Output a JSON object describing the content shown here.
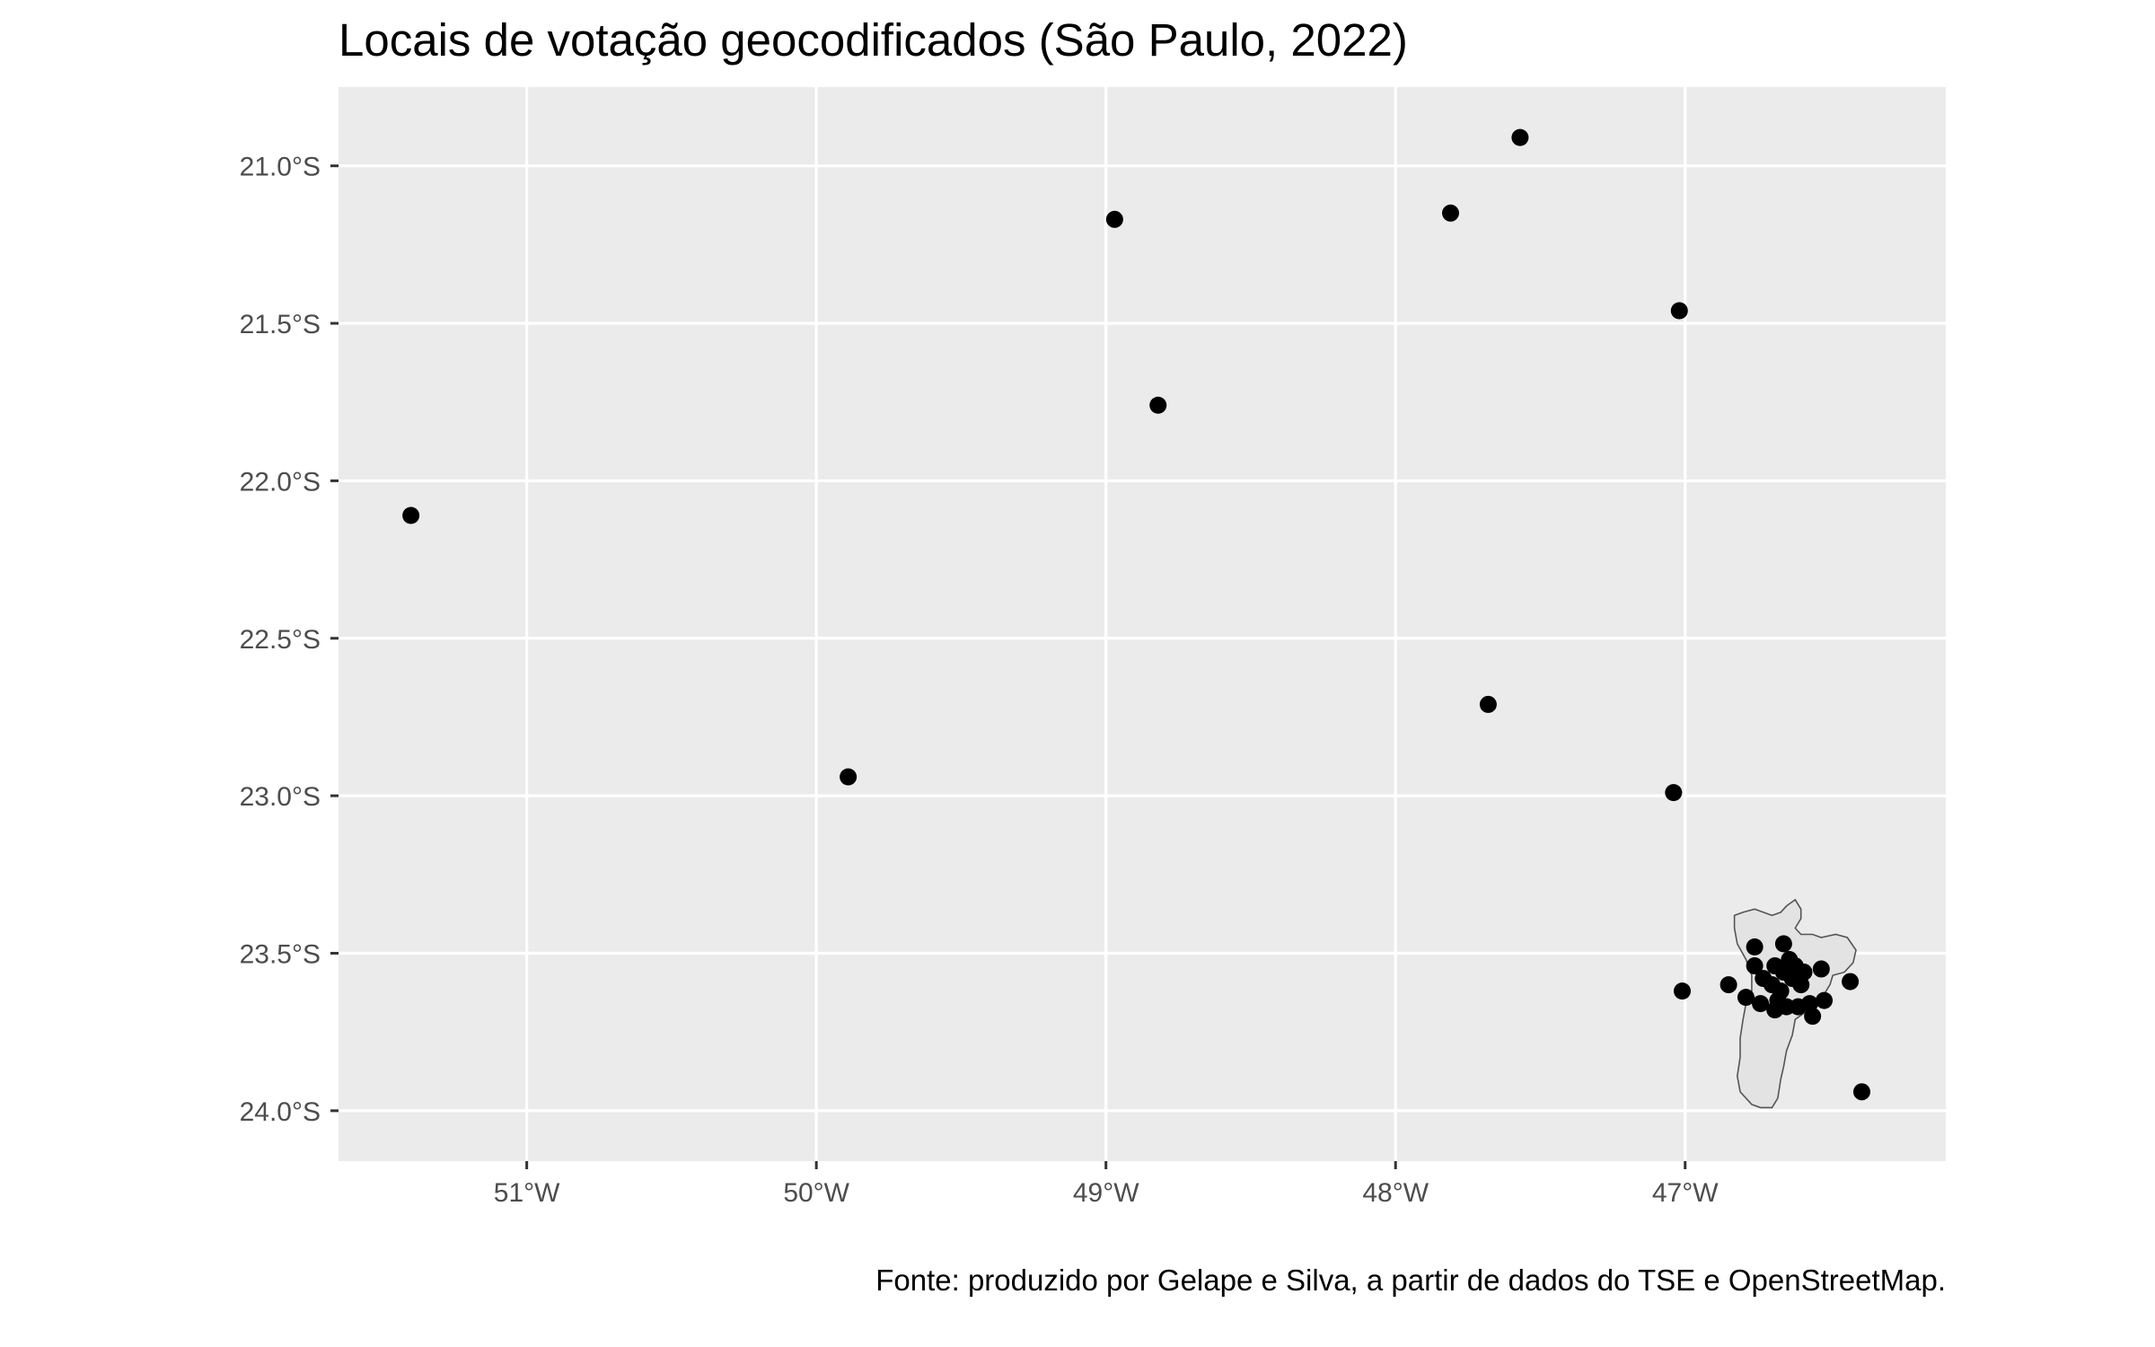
{
  "chart_data": {
    "type": "scatter",
    "title": "Locais de votação geocodificados (São Paulo, 2022)",
    "caption": "Fonte: produzido por Gelape e Silva, a partir de dados do TSE e OpenStreetMap.",
    "xlabel": "",
    "ylabel": "",
    "xlim": [
      -51.65,
      -46.1
    ],
    "ylim": [
      -24.16,
      -20.75
    ],
    "grid": true,
    "legend": "none",
    "x_ticks": [
      {
        "value": -51,
        "label": "51°W"
      },
      {
        "value": -50,
        "label": "50°W"
      },
      {
        "value": -49,
        "label": "49°W"
      },
      {
        "value": -48,
        "label": "48°W"
      },
      {
        "value": -47,
        "label": "47°W"
      }
    ],
    "y_ticks": [
      {
        "value": -21.0,
        "label": "21.0°S"
      },
      {
        "value": -21.5,
        "label": "21.5°S"
      },
      {
        "value": -22.0,
        "label": "22.0°S"
      },
      {
        "value": -22.5,
        "label": "22.5°S"
      },
      {
        "value": -23.0,
        "label": "23.0°S"
      },
      {
        "value": -23.5,
        "label": "23.5°S"
      },
      {
        "value": -24.0,
        "label": "24.0°S"
      }
    ],
    "colors": {
      "panel": "#ebebeb",
      "grid": "#ffffff",
      "point": "#000000",
      "boundary_fill": "#e3e3e3",
      "boundary_stroke": "#555555"
    },
    "municipality_boundary": [
      [
        -46.83,
        -23.38
      ],
      [
        -46.8,
        -23.37
      ],
      [
        -46.76,
        -23.36
      ],
      [
        -46.73,
        -23.37
      ],
      [
        -46.7,
        -23.38
      ],
      [
        -46.67,
        -23.37
      ],
      [
        -46.65,
        -23.35
      ],
      [
        -46.62,
        -23.33
      ],
      [
        -46.6,
        -23.36
      ],
      [
        -46.6,
        -23.39
      ],
      [
        -46.62,
        -23.42
      ],
      [
        -46.6,
        -23.44
      ],
      [
        -46.56,
        -23.44
      ],
      [
        -46.53,
        -23.45
      ],
      [
        -46.48,
        -23.44
      ],
      [
        -46.44,
        -23.45
      ],
      [
        -46.41,
        -23.49
      ],
      [
        -46.42,
        -23.53
      ],
      [
        -46.45,
        -23.56
      ],
      [
        -46.49,
        -23.57
      ],
      [
        -46.5,
        -23.6
      ],
      [
        -46.52,
        -23.63
      ],
      [
        -46.55,
        -23.66
      ],
      [
        -46.59,
        -23.69
      ],
      [
        -46.62,
        -23.71
      ],
      [
        -46.63,
        -23.76
      ],
      [
        -46.65,
        -23.81
      ],
      [
        -46.66,
        -23.86
      ],
      [
        -46.67,
        -23.9
      ],
      [
        -46.68,
        -23.96
      ],
      [
        -46.7,
        -23.99
      ],
      [
        -46.74,
        -23.99
      ],
      [
        -46.77,
        -23.98
      ],
      [
        -46.79,
        -23.96
      ],
      [
        -46.81,
        -23.94
      ],
      [
        -46.82,
        -23.89
      ],
      [
        -46.81,
        -23.83
      ],
      [
        -46.81,
        -23.77
      ],
      [
        -46.8,
        -23.71
      ],
      [
        -46.79,
        -23.66
      ],
      [
        -46.77,
        -23.62
      ],
      [
        -46.77,
        -23.57
      ],
      [
        -46.79,
        -23.52
      ],
      [
        -46.82,
        -23.47
      ],
      [
        -46.83,
        -23.42
      ]
    ],
    "points": [
      {
        "x": -51.4,
        "y": -22.11
      },
      {
        "x": -49.89,
        "y": -22.94
      },
      {
        "x": -48.97,
        "y": -21.17
      },
      {
        "x": -48.82,
        "y": -21.76
      },
      {
        "x": -47.81,
        "y": -21.15
      },
      {
        "x": -47.57,
        "y": -20.91
      },
      {
        "x": -47.68,
        "y": -22.71
      },
      {
        "x": -47.02,
        "y": -21.46
      },
      {
        "x": -47.04,
        "y": -22.99
      },
      {
        "x": -47.01,
        "y": -23.62
      },
      {
        "x": -46.85,
        "y": -23.6
      },
      {
        "x": -46.79,
        "y": -23.64
      },
      {
        "x": -46.76,
        "y": -23.48
      },
      {
        "x": -46.76,
        "y": -23.54
      },
      {
        "x": -46.74,
        "y": -23.66
      },
      {
        "x": -46.73,
        "y": -23.58
      },
      {
        "x": -46.7,
        "y": -23.6
      },
      {
        "x": -46.69,
        "y": -23.54
      },
      {
        "x": -46.69,
        "y": -23.68
      },
      {
        "x": -46.68,
        "y": -23.65
      },
      {
        "x": -46.67,
        "y": -23.62
      },
      {
        "x": -46.66,
        "y": -23.47
      },
      {
        "x": -46.66,
        "y": -23.56
      },
      {
        "x": -46.65,
        "y": -23.67
      },
      {
        "x": -46.64,
        "y": -23.52
      },
      {
        "x": -46.63,
        "y": -23.58
      },
      {
        "x": -46.62,
        "y": -23.54
      },
      {
        "x": -46.61,
        "y": -23.67
      },
      {
        "x": -46.6,
        "y": -23.6
      },
      {
        "x": -46.59,
        "y": -23.56
      },
      {
        "x": -46.57,
        "y": -23.66
      },
      {
        "x": -46.56,
        "y": -23.7
      },
      {
        "x": -46.53,
        "y": -23.55
      },
      {
        "x": -46.52,
        "y": -23.65
      },
      {
        "x": -46.43,
        "y": -23.59
      },
      {
        "x": -46.39,
        "y": -23.94
      }
    ]
  }
}
